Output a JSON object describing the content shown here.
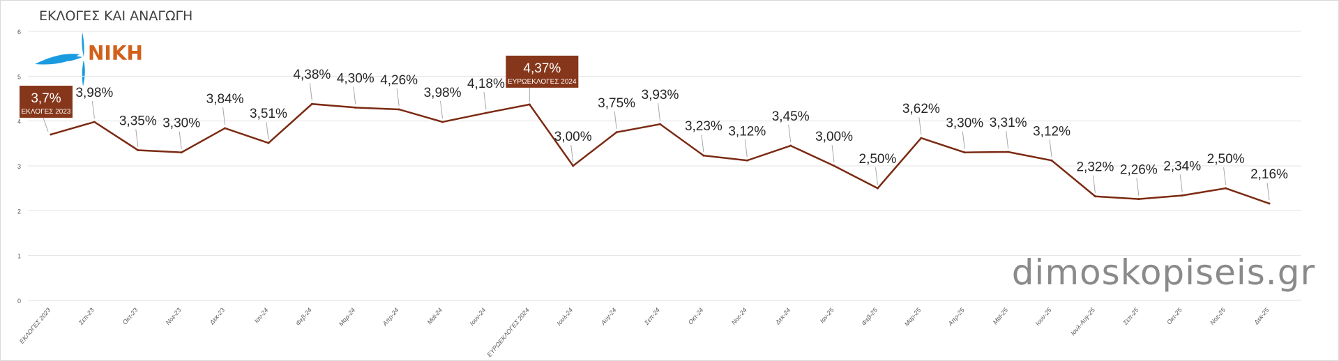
{
  "chart_data": {
    "type": "line",
    "title": "ΕΚΛΟΓΕΣ ΚΑΙ ΑΝΑΓΩΓΗ",
    "xlabel": "",
    "ylabel": "",
    "ylim": [
      0,
      6
    ],
    "yticks": [
      "0",
      "1",
      "2",
      "3",
      "4",
      "5",
      "6"
    ],
    "grid": true,
    "legend": "none",
    "categories": [
      "ΕΚΛΟΓΕΣ 2023",
      "Σεπ-23",
      "Οκτ-23",
      "Νοε-23",
      "Δεκ-23",
      "Ιαν-24",
      "Φεβ-24",
      "Μαρ-24",
      "Απρ-24",
      "Μαϊ-24",
      "Ιουν-24",
      "ΕΥΡΩΕΚΛΟΓΕΣ 2024",
      "Ιουλ-24",
      "Αυγ-24",
      "Σεπ-24",
      "Οκτ-24",
      "Νοε-24",
      "Δεκ-24",
      "Ιαν-25",
      "Φεβ-25",
      "Μαρ-25",
      "Απρ-25",
      "Μαϊ-25",
      "Ιουν-25",
      "Ιουλ-Αυγ-25",
      "Σεπ-25",
      "Οκτ-25",
      "Νοε-25",
      "Δεκ-25"
    ],
    "series": [
      {
        "name": "ΝΙΚΗ",
        "color": "#7b2a12",
        "values": [
          3.7,
          3.98,
          3.35,
          3.3,
          3.84,
          3.51,
          4.38,
          4.3,
          4.26,
          3.98,
          4.18,
          4.37,
          3.0,
          3.75,
          3.93,
          3.23,
          3.12,
          3.45,
          3.0,
          2.5,
          3.62,
          3.3,
          3.31,
          3.12,
          2.32,
          2.26,
          2.34,
          2.5,
          2.16
        ],
        "data_labels": [
          "3,7%",
          "3,98%",
          "3,35%",
          "3,30%",
          "3,84%",
          "3,51%",
          "4,38%",
          "4,30%",
          "4,26%",
          "3,98%",
          "4,18%",
          "4,37%",
          "3,00%",
          "3,75%",
          "3,93%",
          "3,23%",
          "3,12%",
          "3,45%",
          "3,00%",
          "2,50%",
          "3,62%",
          "3,30%",
          "3,31%",
          "3,12%",
          "2,32%",
          "2,26%",
          "2,34%",
          "2,50%",
          "2,16%"
        ]
      }
    ],
    "annotations": [
      {
        "index": 0,
        "value_label": "3,7%",
        "caption": "ΕΚΛΟΓΕΣ 2023"
      },
      {
        "index": 11,
        "value_label": "4,37%",
        "caption": "ΕΥΡΩΕΚΛΟΓΕΣ 2024"
      }
    ]
  },
  "logo": {
    "text": "ΝΙΚΗ",
    "color": "#d2601a",
    "mark_color": "#1a9be0"
  },
  "watermark": "dimoskopiseis.gr",
  "colors": {
    "callout": "#86361a",
    "grid": "#e3e3e3",
    "leader": "#a6a6a6"
  }
}
